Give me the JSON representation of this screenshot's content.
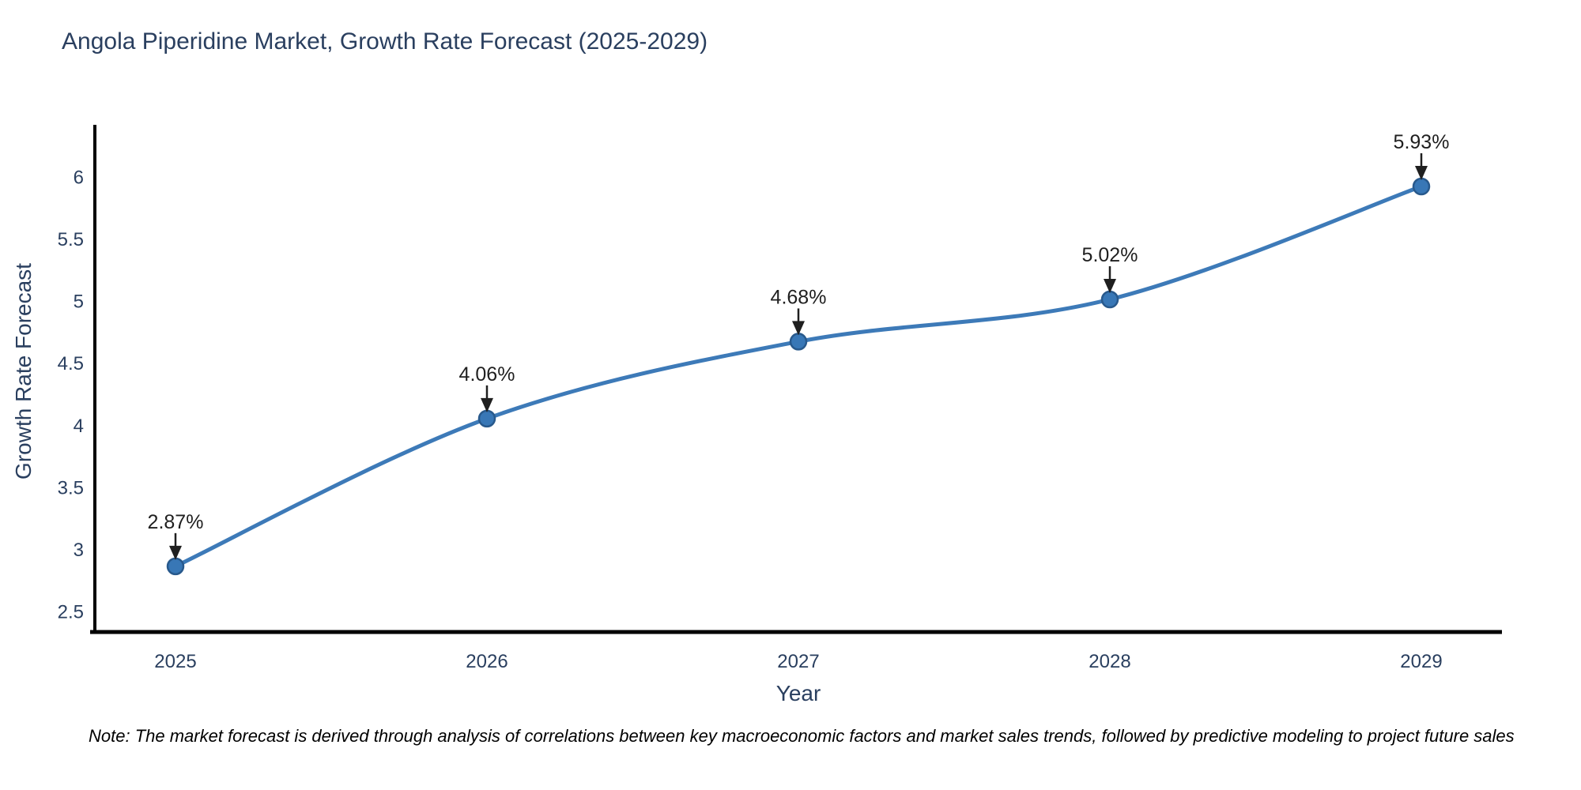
{
  "chart_data": {
    "type": "line",
    "title": "Angola Piperidine Market, Growth Rate Forecast (2025-2029)",
    "xlabel": "Year",
    "ylabel": "Growth Rate Forecast",
    "x": [
      2025,
      2026,
      2027,
      2028,
      2029
    ],
    "values": [
      2.87,
      4.06,
      4.68,
      5.02,
      5.93
    ],
    "point_labels": [
      "2.87%",
      "4.06%",
      "4.68%",
      "5.02%",
      "5.93%"
    ],
    "x_ticks": [
      "2025",
      "2026",
      "2027",
      "2028",
      "2029"
    ],
    "y_ticks": [
      "2.5",
      "3",
      "3.5",
      "4",
      "4.5",
      "5",
      "5.5",
      "6"
    ],
    "ylim": [
      2.34,
      6.42
    ],
    "grid": false,
    "legend": "none",
    "line_shape": "spline",
    "colors": {
      "line": "#3d7ab8",
      "marker_fill": "#3877b6",
      "marker_stroke": "#28598c",
      "axis": "#000000",
      "tick_text": "#2a3f5f",
      "annotation": "#1f1f1f"
    },
    "note": "Note: The market forecast is derived through analysis of correlations between key macroeconomic factors and market sales trends, followed by predictive modeling to project future sales"
  }
}
